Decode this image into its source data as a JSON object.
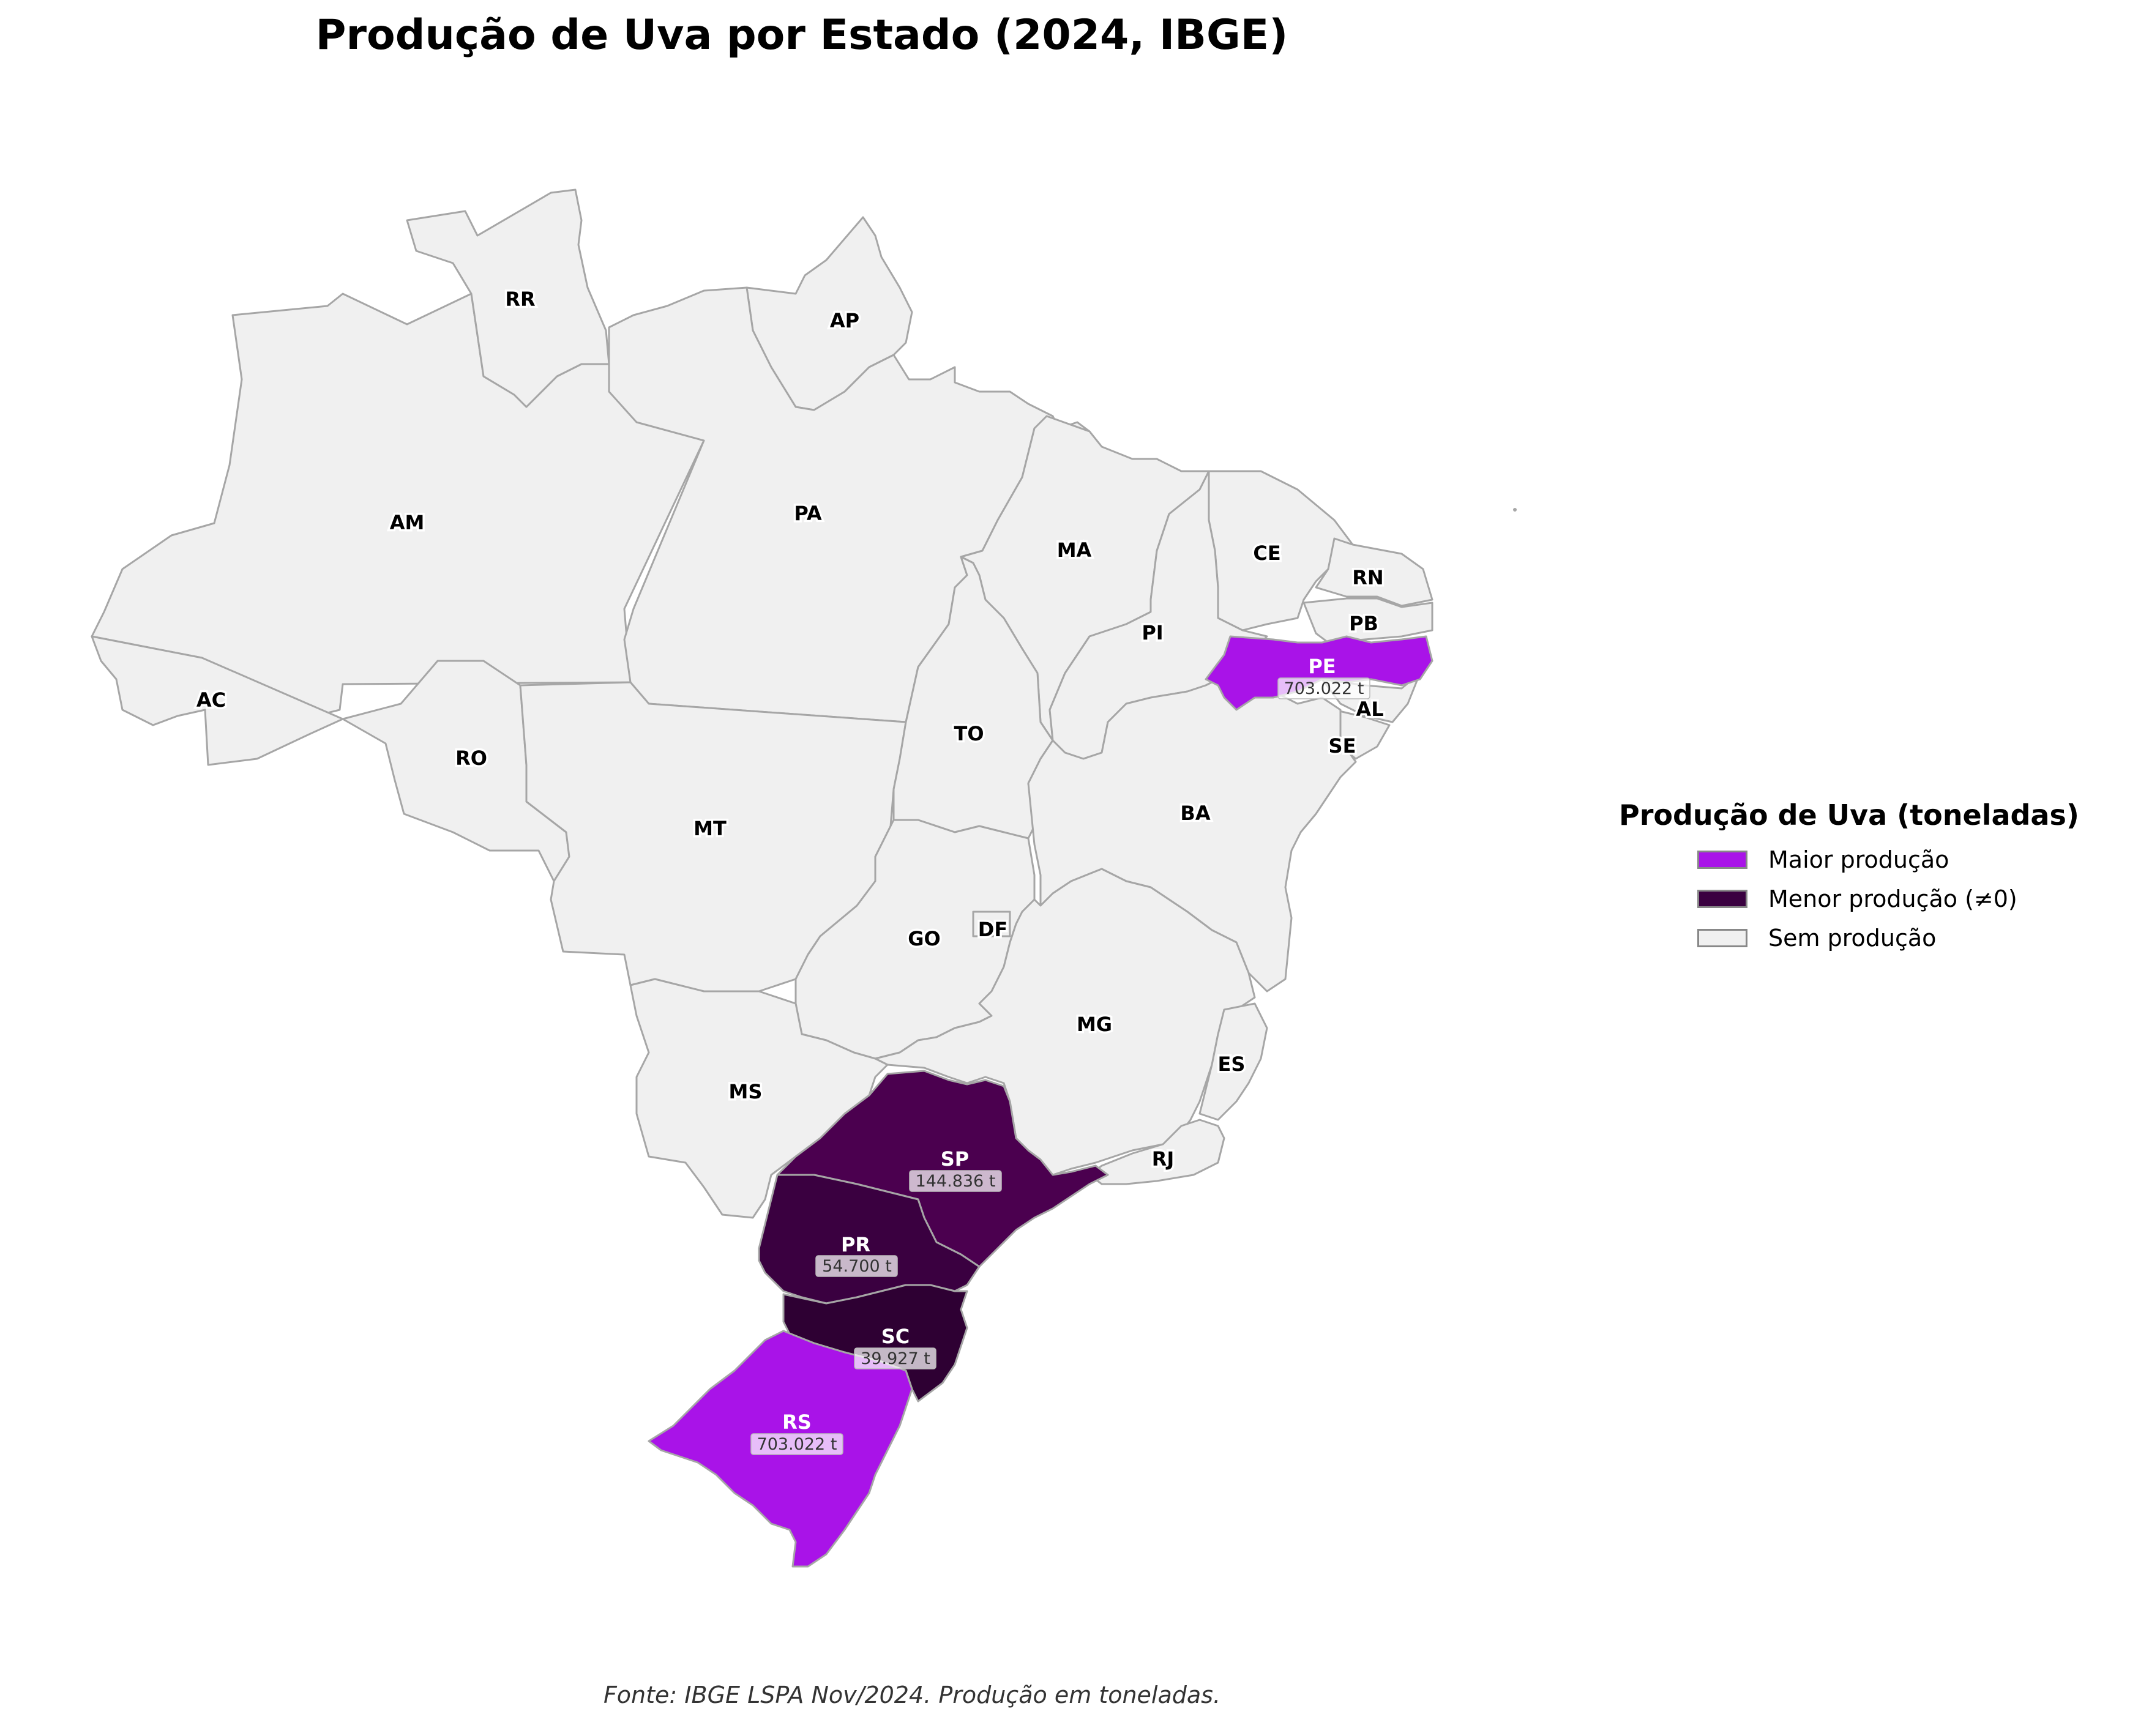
{
  "title": "Produção de Uva por Estado (2024, IBGE)",
  "legend": {
    "title": "Produção de Uva (toneladas)",
    "items": [
      {
        "label": "Maior produção",
        "color": "#a913e8"
      },
      {
        "label": "Menor produção (≠0)",
        "color": "#3a0040"
      },
      {
        "label": "Sem produção",
        "color": "#f0f0f0"
      }
    ]
  },
  "source": "Fonte: IBGE LSPA Nov/2024. Produção em toneladas.",
  "colors": {
    "no_production": "#f0f0f0",
    "border": "#a6a6a6"
  },
  "states": [
    {
      "abbr": "RR"
    },
    {
      "abbr": "AP"
    },
    {
      "abbr": "AM"
    },
    {
      "abbr": "PA"
    },
    {
      "abbr": "MA"
    },
    {
      "abbr": "CE"
    },
    {
      "abbr": "RN"
    },
    {
      "abbr": "PB"
    },
    {
      "abbr": "PI"
    },
    {
      "abbr": "PE",
      "production_label": "703.022 t",
      "production_t": 703022
    },
    {
      "abbr": "AL"
    },
    {
      "abbr": "SE"
    },
    {
      "abbr": "AC"
    },
    {
      "abbr": "RO"
    },
    {
      "abbr": "TO"
    },
    {
      "abbr": "BA"
    },
    {
      "abbr": "MT"
    },
    {
      "abbr": "GO"
    },
    {
      "abbr": "DF"
    },
    {
      "abbr": "MG"
    },
    {
      "abbr": "ES"
    },
    {
      "abbr": "MS"
    },
    {
      "abbr": "RJ"
    },
    {
      "abbr": "SP",
      "production_label": "144.836 t",
      "production_t": 144836
    },
    {
      "abbr": "PR",
      "production_label": "54.700 t",
      "production_t": 54700
    },
    {
      "abbr": "SC",
      "production_label": "39.927 t",
      "production_t": 39927
    },
    {
      "abbr": "RS",
      "production_label": "703.022 t",
      "production_t": 703022
    }
  ]
}
